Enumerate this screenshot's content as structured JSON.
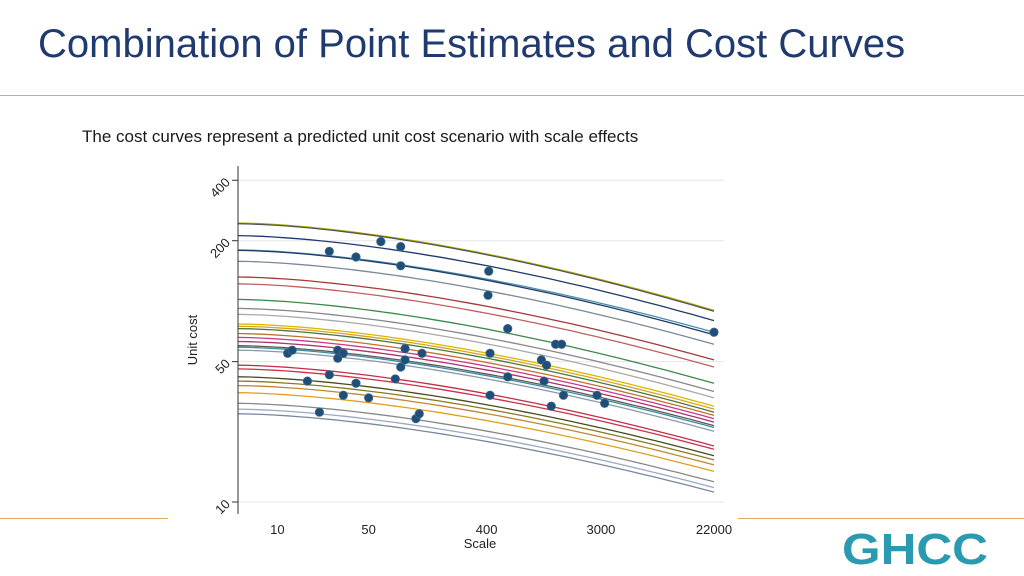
{
  "title": "Combination of Point Estimates and Cost Curves",
  "subtitle": "The cost curves represent a predicted unit cost scenario with scale effects",
  "logo_text": "GHCC",
  "colors": {
    "title": "#1f3a6e",
    "rule": "#e2a766",
    "logo": "#2a9ab0",
    "point": "#1f4e79"
  },
  "chart_data": {
    "type": "scatter",
    "title": "",
    "xlabel": "Scale",
    "ylabel": "Unit cost",
    "x_scale": "log",
    "y_scale": "log",
    "xlim": [
      5,
      22000
    ],
    "ylim": [
      10,
      420
    ],
    "xticks": [
      10,
      50,
      400,
      3000,
      22000
    ],
    "yticks": [
      10,
      50,
      200,
      400
    ],
    "grid": true,
    "curve_series": [
      {
        "name": "c1",
        "y_start": 245,
        "y_end": 90,
        "color": "#b0b000"
      },
      {
        "name": "c2",
        "y_start": 243,
        "y_end": 89,
        "color": "#555555"
      },
      {
        "name": "c3",
        "y_start": 212,
        "y_end": 80,
        "color": "#1f3a6e"
      },
      {
        "name": "c4",
        "y_start": 180,
        "y_end": 70,
        "color": "#4a8fa8"
      },
      {
        "name": "c5",
        "y_start": 179,
        "y_end": 68,
        "color": "#1f3a6e"
      },
      {
        "name": "c6",
        "y_start": 158,
        "y_end": 61,
        "color": "#7a8898"
      },
      {
        "name": "c7",
        "y_start": 132,
        "y_end": 51,
        "color": "#a33a3a"
      },
      {
        "name": "c8",
        "y_start": 122,
        "y_end": 47,
        "color": "#c06060"
      },
      {
        "name": "c9",
        "y_start": 102,
        "y_end": 39,
        "color": "#3c8a4a"
      },
      {
        "name": "c10",
        "y_start": 92,
        "y_end": 35.5,
        "color": "#888888"
      },
      {
        "name": "c11",
        "y_start": 86,
        "y_end": 33,
        "color": "#a9a9a9"
      },
      {
        "name": "c12",
        "y_start": 77,
        "y_end": 30,
        "color": "#d6b800"
      },
      {
        "name": "c13",
        "y_start": 75,
        "y_end": 29,
        "color": "#e0a020"
      },
      {
        "name": "c14",
        "y_start": 73,
        "y_end": 28,
        "color": "#4a7a3a"
      },
      {
        "name": "c15",
        "y_start": 69,
        "y_end": 27,
        "color": "#c07030"
      },
      {
        "name": "c16",
        "y_start": 66,
        "y_end": 26,
        "color": "#c83a8a"
      },
      {
        "name": "c17",
        "y_start": 63,
        "y_end": 25,
        "color": "#b0306a"
      },
      {
        "name": "c18",
        "y_start": 60,
        "y_end": 24,
        "color": "#5a5a5a"
      },
      {
        "name": "c19",
        "y_start": 59,
        "y_end": 23.5,
        "color": "#3a8aa0"
      },
      {
        "name": "c20",
        "y_start": 57,
        "y_end": 22.5,
        "color": "#8a9aaa"
      },
      {
        "name": "c21",
        "y_start": 48,
        "y_end": 19,
        "color": "#c0304a"
      },
      {
        "name": "c22",
        "y_start": 46,
        "y_end": 18.3,
        "color": "#d0304a"
      },
      {
        "name": "c23",
        "y_start": 42,
        "y_end": 17,
        "color": "#4a4a20"
      },
      {
        "name": "c24",
        "y_start": 40,
        "y_end": 16.2,
        "color": "#8a7a20"
      },
      {
        "name": "c25",
        "y_start": 38,
        "y_end": 15.3,
        "color": "#c08830"
      },
      {
        "name": "c26",
        "y_start": 35,
        "y_end": 14.2,
        "color": "#e0a020"
      },
      {
        "name": "c27",
        "y_start": 31,
        "y_end": 12.6,
        "color": "#888888"
      },
      {
        "name": "c28",
        "y_start": 29,
        "y_end": 11.8,
        "color": "#9aa8c8"
      },
      {
        "name": "c29",
        "y_start": 27.5,
        "y_end": 11.2,
        "color": "#7a8898"
      }
    ],
    "points": [
      {
        "x": 12,
        "y": 55
      },
      {
        "x": 13,
        "y": 57
      },
      {
        "x": 17,
        "y": 40
      },
      {
        "x": 21,
        "y": 28
      },
      {
        "x": 25,
        "y": 177
      },
      {
        "x": 25,
        "y": 43
      },
      {
        "x": 29,
        "y": 57
      },
      {
        "x": 29,
        "y": 52
      },
      {
        "x": 32,
        "y": 55
      },
      {
        "x": 32,
        "y": 34
      },
      {
        "x": 40,
        "y": 166
      },
      {
        "x": 40,
        "y": 39
      },
      {
        "x": 62,
        "y": 198
      },
      {
        "x": 88,
        "y": 187
      },
      {
        "x": 88,
        "y": 150
      },
      {
        "x": 88,
        "y": 47
      },
      {
        "x": 50,
        "y": 33
      },
      {
        "x": 80,
        "y": 41
      },
      {
        "x": 95,
        "y": 58
      },
      {
        "x": 95,
        "y": 51
      },
      {
        "x": 128,
        "y": 55
      },
      {
        "x": 115,
        "y": 26
      },
      {
        "x": 122,
        "y": 27.5
      },
      {
        "x": 415,
        "y": 141
      },
      {
        "x": 410,
        "y": 107
      },
      {
        "x": 425,
        "y": 55
      },
      {
        "x": 425,
        "y": 34
      },
      {
        "x": 580,
        "y": 73
      },
      {
        "x": 580,
        "y": 42
      },
      {
        "x": 1050,
        "y": 51
      },
      {
        "x": 1100,
        "y": 40
      },
      {
        "x": 1150,
        "y": 48
      },
      {
        "x": 1250,
        "y": 30
      },
      {
        "x": 1350,
        "y": 61
      },
      {
        "x": 1500,
        "y": 61
      },
      {
        "x": 1550,
        "y": 34
      },
      {
        "x": 2800,
        "y": 34
      },
      {
        "x": 3200,
        "y": 31
      },
      {
        "x": 22000,
        "y": 70
      }
    ]
  }
}
